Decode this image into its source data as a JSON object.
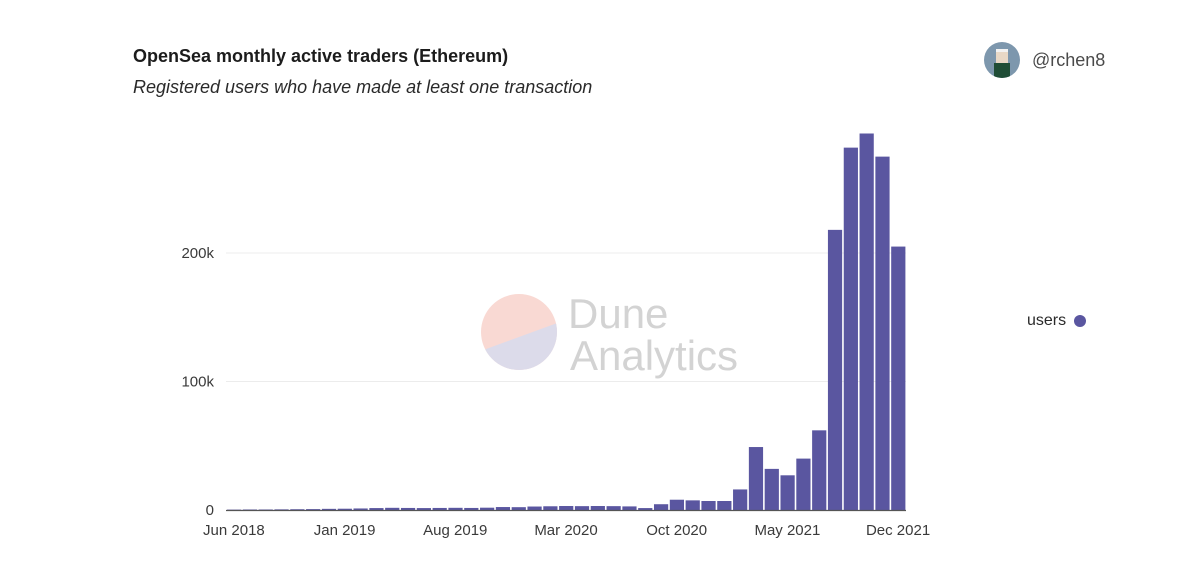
{
  "header": {
    "title": "OpenSea monthly active traders (Ethereum)",
    "subtitle": "Registered users who have made at least one transaction",
    "author_handle": "@rchen8",
    "avatar_icon": "user-avatar-icon"
  },
  "watermark": {
    "line1": "Dune",
    "line2": "Analytics"
  },
  "colors": {
    "bar": "#5a56a0",
    "grid": "#ececec",
    "axis": "#555555"
  },
  "chart_data": {
    "type": "bar",
    "title": "OpenSea monthly active traders (Ethereum)",
    "subtitle": "Registered users who have made at least one transaction",
    "xlabel": "",
    "ylabel": "",
    "ylim": [
      0,
      300000
    ],
    "grid": true,
    "legend": {
      "entries": [
        "users"
      ],
      "position": "right"
    },
    "y_ticks": [
      {
        "value": 0,
        "label": "0"
      },
      {
        "value": 100000,
        "label": "100k"
      },
      {
        "value": 200000,
        "label": "200k"
      }
    ],
    "x_ticks": [
      "Jun 2018",
      "Jan 2019",
      "Aug 2019",
      "Mar 2020",
      "Oct 2020",
      "May 2021",
      "Dec 2021"
    ],
    "categories": [
      "Jun 2018",
      "Jul 2018",
      "Aug 2018",
      "Sep 2018",
      "Oct 2018",
      "Nov 2018",
      "Dec 2018",
      "Jan 2019",
      "Feb 2019",
      "Mar 2019",
      "Apr 2019",
      "May 2019",
      "Jun 2019",
      "Jul 2019",
      "Aug 2019",
      "Sep 2019",
      "Oct 2019",
      "Nov 2019",
      "Dec 2019",
      "Jan 2020",
      "Feb 2020",
      "Mar 2020",
      "Apr 2020",
      "May 2020",
      "Jun 2020",
      "Jul 2020",
      "Aug 2020",
      "Sep 2020",
      "Oct 2020",
      "Nov 2020",
      "Dec 2020",
      "Jan 2021",
      "Feb 2021",
      "Mar 2021",
      "Apr 2021",
      "May 2021",
      "Jun 2021",
      "Jul 2021",
      "Aug 2021",
      "Sep 2021",
      "Oct 2021",
      "Nov 2021",
      "Dec 2021"
    ],
    "series": [
      {
        "name": "users",
        "values": [
          300,
          400,
          400,
          500,
          600,
          700,
          900,
          1000,
          1200,
          1500,
          1700,
          1600,
          1500,
          1600,
          1700,
          1600,
          1800,
          2300,
          2200,
          2700,
          2900,
          3100,
          3000,
          3100,
          3000,
          2800,
          1500,
          4500,
          8000,
          7500,
          7000,
          7000,
          16000,
          49000,
          32000,
          27000,
          40000,
          62000,
          218000,
          282000,
          293000,
          275000,
          205000
        ]
      }
    ]
  }
}
